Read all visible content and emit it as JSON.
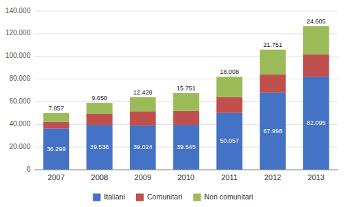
{
  "chart_data": {
    "type": "bar",
    "stacked": true,
    "grid": true,
    "legend": "bottom",
    "data_labels": true,
    "categories": [
      "2007",
      "2008",
      "2009",
      "2010",
      "2011",
      "2012",
      "2013"
    ],
    "series": [
      {
        "name": "Italiani",
        "color": "#4472C4",
        "values": [
          36299,
          39536,
          39024,
          39545,
          50057,
          67998,
          82095
        ],
        "value_labels": [
          "36.299",
          "39.536",
          "39.024",
          "39.545",
          "50.057",
          "67.998",
          "82.095"
        ]
      },
      {
        "name": "Comunitari",
        "color": "#C0504D",
        "values": [
          5844,
          9814,
          12548,
          12299,
          13943,
          16251,
          19900
        ]
      },
      {
        "name": "Non comunitari",
        "color": "#9BBB59",
        "values": [
          7857,
          9650,
          12428,
          15751,
          18008,
          21751,
          24605
        ],
        "value_labels": [
          "7.857",
          "9.650",
          "12.428",
          "15.751",
          "18.008",
          "21.751",
          "24.605"
        ]
      }
    ],
    "ylim": [
      0,
      140000
    ],
    "yticks": [
      0,
      {
        "value": 20000,
        "label": "20.000"
      },
      {
        "value": 40000,
        "label": "40.000"
      },
      {
        "value": 60000,
        "label": "60.000"
      },
      {
        "value": 80000,
        "label": "80.000"
      },
      {
        "value": 100000,
        "label": "100.000"
      },
      {
        "value": 120000,
        "label": "120.000"
      },
      {
        "value": 140000,
        "label": "140.000"
      }
    ]
  }
}
